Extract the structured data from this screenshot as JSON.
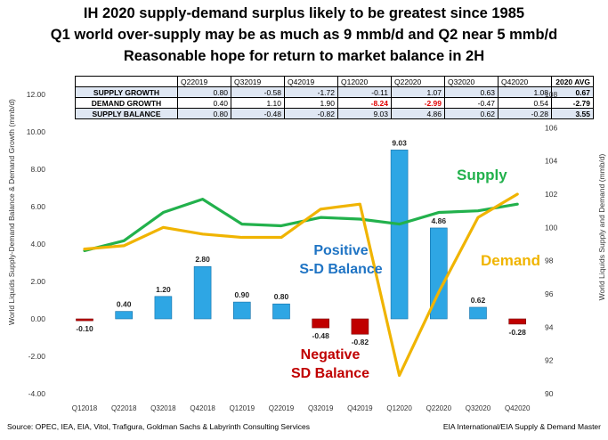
{
  "title_lines": [
    "IH 2020 supply-demand  surplus likely to be greatest since 1985",
    "Q1 world over-supply  may be as much as 9 mmb/d and Q2 near 5 mmb/d",
    "Reasonable hope  for return to market balance in 2H"
  ],
  "table": {
    "headers": [
      "Q22019",
      "Q32019",
      "Q42019",
      "Q12020",
      "Q22020",
      "Q32020",
      "Q42020",
      "2020 AVG"
    ],
    "rows": [
      {
        "label": "SUPPLY GROWTH",
        "values": [
          "0.80",
          "-0.58",
          "-1.72",
          "-0.11",
          "1.07",
          "0.63",
          "1.08"
        ],
        "avg": "0.67"
      },
      {
        "label": "DEMAND GROWTH",
        "values": [
          "0.40",
          "1.10",
          "1.90",
          "-8.24",
          "-2.99",
          "-0.47",
          "0.54"
        ],
        "avg": "-2.79"
      },
      {
        "label": "SUPPLY BALANCE",
        "values": [
          "0.80",
          "-0.48",
          "-0.82",
          "9.03",
          "4.86",
          "0.62",
          "-0.28"
        ],
        "avg": "3.55"
      }
    ]
  },
  "annotations": {
    "supply": "Supply",
    "demand": "Demand",
    "positive_line1": "Positive",
    "positive_line2": "S-D Balance",
    "negative_line1": "Negative",
    "negative_line2": "SD Balance"
  },
  "footer": {
    "source": "Source:  OPEC,  IEA, EIA, Vitol, Trafigura,  Goldman Sachs  & Labyrinth Consulting  Services",
    "credit": "EIA International/EIA Supply & Demand Master"
  },
  "colors": {
    "bar": "#2ea6e4",
    "bar_negative": "#c00000",
    "supply_line": "#22b14c",
    "demand_line": "#f0b400"
  },
  "chart_data": {
    "type": "bar+line",
    "categories": [
      "Q12018",
      "Q22018",
      "Q32018",
      "Q42018",
      "Q12019",
      "Q22019",
      "Q32019",
      "Q42019",
      "Q12020",
      "Q22020",
      "Q32020",
      "Q42020"
    ],
    "y_left": {
      "label": "World Liquids Supply-Demand Balance & Demand Growth (mmb/d)",
      "ticks": [
        "-4.00",
        "-2.00",
        "0.00",
        "2.00",
        "4.00",
        "6.00",
        "8.00",
        "10.00",
        "12.00"
      ],
      "range": [
        -4,
        12
      ]
    },
    "y_right": {
      "label": "World Liquids Supply and Demand (mmb/d)",
      "ticks": [
        "90",
        "92",
        "94",
        "96",
        "98",
        "100",
        "102",
        "104",
        "106",
        "108"
      ],
      "range": [
        90,
        108
      ]
    },
    "bars": {
      "name": "S-D Balance",
      "values": [
        -0.1,
        0.4,
        1.2,
        2.8,
        0.9,
        0.8,
        -0.48,
        -0.82,
        9.03,
        4.86,
        0.62,
        -0.28
      ],
      "labels": [
        "-0.10",
        "0.40",
        "1.20",
        "2.80",
        "0.90",
        "0.80",
        "-0.48",
        "-0.82",
        "9.03",
        "4.86",
        "0.62",
        "-0.28"
      ]
    },
    "series": [
      {
        "name": "Supply",
        "axis": "right",
        "values": [
          98.6,
          99.2,
          100.9,
          101.7,
          100.2,
          100.1,
          100.6,
          100.5,
          100.2,
          100.9,
          101.0,
          101.4
        ]
      },
      {
        "name": "Demand",
        "axis": "right",
        "values": [
          98.7,
          98.9,
          100.0,
          99.6,
          99.4,
          99.4,
          101.1,
          101.4,
          91.1,
          96.1,
          100.6,
          102.0
        ]
      }
    ],
    "grid": false,
    "legend": "inline-annotations"
  }
}
